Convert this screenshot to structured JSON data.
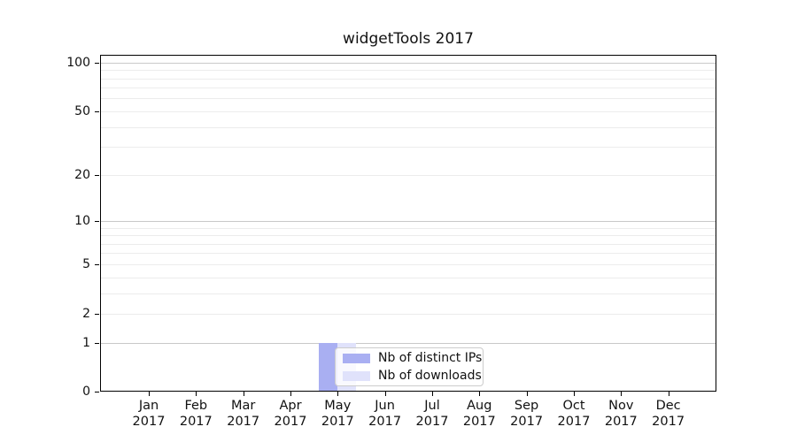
{
  "chart_data": {
    "type": "bar",
    "title": "widgetTools 2017",
    "year": "2017",
    "categories": [
      "Jan",
      "Feb",
      "Mar",
      "Apr",
      "May",
      "Jun",
      "Jul",
      "Aug",
      "Sep",
      "Oct",
      "Nov",
      "Dec"
    ],
    "series": [
      {
        "name": "Nb of distinct IPs",
        "color": "#a9aff2",
        "values": [
          0,
          0,
          0,
          0,
          1,
          0,
          0,
          0,
          0,
          0,
          0,
          0
        ]
      },
      {
        "name": "Nb of downloads",
        "color": "#e0e2fb",
        "values": [
          0,
          0,
          0,
          0,
          1,
          0,
          0,
          0,
          0,
          0,
          0,
          0
        ]
      }
    ],
    "yscale": "log1p",
    "ylim": [
      0,
      110
    ],
    "yticks": [
      0,
      1,
      2,
      5,
      10,
      20,
      50,
      100
    ],
    "grid": {
      "major": [
        1,
        10,
        100
      ],
      "minor": [
        2,
        3,
        4,
        5,
        6,
        7,
        8,
        9,
        20,
        30,
        40,
        50,
        60,
        70,
        80,
        90
      ],
      "major_color": "#c9c9c9",
      "minor_color": "#ececec"
    },
    "legend_position": "lower center (over May bars)",
    "xlabel": "",
    "ylabel": ""
  }
}
